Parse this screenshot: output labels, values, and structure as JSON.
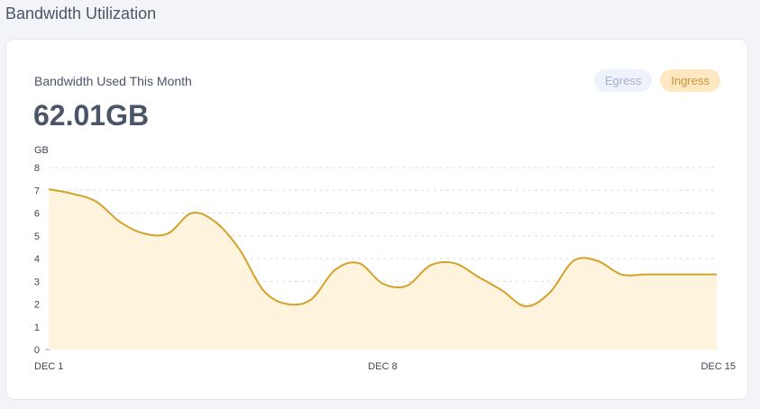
{
  "page": {
    "title": "Bandwidth Utilization"
  },
  "card": {
    "subtitle": "Bandwidth Used This Month",
    "value": "62.01GB"
  },
  "legend": {
    "egress_label": "Egress",
    "ingress_label": "Ingress"
  },
  "colors": {
    "ingress_line": "#d4a22a",
    "ingress_fill": "#fef3dc",
    "gridline": "#d9dde3"
  },
  "chart_data": {
    "type": "area",
    "ylabel": "GB",
    "ylim": [
      0,
      8
    ],
    "yticks": [
      0,
      1,
      2,
      3,
      4,
      5,
      6,
      7,
      8
    ],
    "xtick_labels": [
      {
        "day": 1,
        "label": "DEC 1"
      },
      {
        "day": 8,
        "label": "DEC 8"
      },
      {
        "day": 15,
        "label": "DEC 15"
      }
    ],
    "grid": true,
    "series": [
      {
        "name": "Ingress",
        "x": [
          1,
          1.5,
          2,
          2.5,
          3,
          3.5,
          4,
          4.5,
          5,
          5.5,
          6,
          6.5,
          7,
          7.5,
          8,
          8.5,
          9,
          9.5,
          10,
          10.5,
          11,
          11.5,
          12,
          12.5,
          13,
          13.5,
          14,
          14.5,
          15
        ],
        "values": [
          7.05,
          6.85,
          6.5,
          5.6,
          5.1,
          5.1,
          6.0,
          5.6,
          4.4,
          2.6,
          2.0,
          2.2,
          3.5,
          3.8,
          2.9,
          2.8,
          3.7,
          3.8,
          3.2,
          2.6,
          1.9,
          2.5,
          3.9,
          3.9,
          3.3,
          3.3,
          3.3,
          3.3,
          3.3
        ]
      }
    ]
  }
}
